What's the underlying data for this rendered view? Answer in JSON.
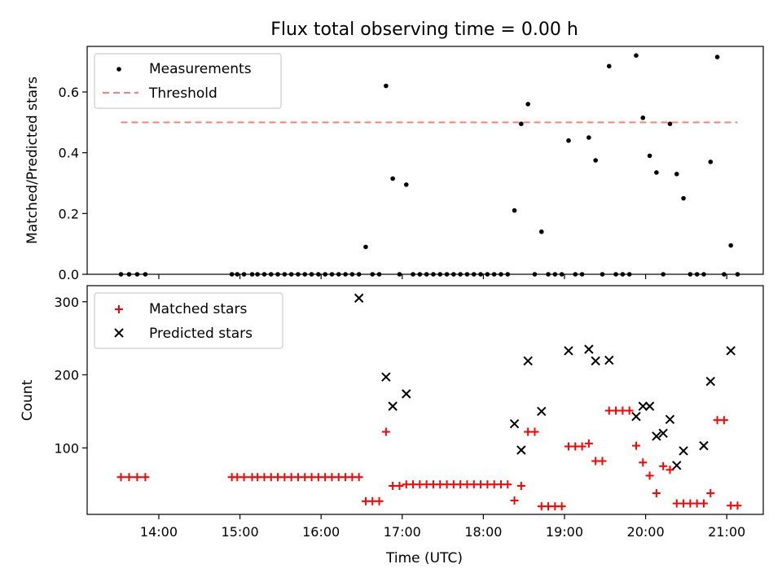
{
  "chart_data": [
    {
      "type": "scatter",
      "title": "Flux total observing time = 0.00 h",
      "xlabel": "",
      "ylabel": "Matched/Predicted stars",
      "ylim": [
        0,
        0.75
      ],
      "yticks": [
        "0.0",
        "0.2",
        "0.4",
        "0.6"
      ],
      "ytick_values": [
        0,
        0.2,
        0.4,
        0.6
      ],
      "legend": {
        "placement": "top-left",
        "entries": [
          "Measurements",
          "Threshold"
        ]
      },
      "colors": {
        "measurements": "#000000",
        "threshold": "#ff7f7f"
      },
      "threshold": {
        "name": "Threshold",
        "value": 0.5,
        "x_start": "13:32",
        "x_end": "21:08"
      },
      "series": [
        {
          "name": "Measurements",
          "x": [
            "13:32",
            "13:38",
            "13:44",
            "13:50",
            "14:54",
            "14:58",
            "15:03",
            "15:09",
            "15:13",
            "15:18",
            "15:23",
            "15:28",
            "15:33",
            "15:38",
            "15:43",
            "15:48",
            "15:53",
            "15:58",
            "16:03",
            "16:08",
            "16:13",
            "16:18",
            "16:23",
            "16:28",
            "16:33",
            "16:38",
            "16:43",
            "16:48",
            "16:53",
            "16:58",
            "17:03",
            "17:08",
            "17:13",
            "17:18",
            "17:23",
            "17:28",
            "17:33",
            "17:38",
            "17:43",
            "17:48",
            "17:53",
            "17:58",
            "18:03",
            "18:08",
            "18:13",
            "18:18",
            "18:23",
            "18:28",
            "18:33",
            "18:38",
            "18:43",
            "18:48",
            "18:53",
            "18:58",
            "19:03",
            "19:08",
            "19:13",
            "19:18",
            "19:23",
            "19:28",
            "19:33",
            "19:38",
            "19:43",
            "19:48",
            "19:53",
            "19:58",
            "20:03",
            "20:08",
            "20:13",
            "20:18",
            "20:23",
            "20:28",
            "20:33",
            "20:38",
            "20:43",
            "20:48",
            "20:53",
            "20:58",
            "21:03",
            "21:08"
          ],
          "y": [
            0,
            0,
            0,
            0,
            0,
            0,
            0,
            0,
            0,
            0,
            0,
            0,
            0,
            0,
            0,
            0,
            0,
            0,
            0,
            0,
            0,
            0,
            0,
            0,
            0.09,
            0,
            0,
            0.62,
            0.315,
            0,
            0.295,
            0,
            0,
            0,
            0,
            0,
            0,
            0,
            0,
            0,
            0,
            0,
            0,
            0,
            0,
            0,
            0.21,
            0.495,
            0.56,
            0,
            0.14,
            0,
            0,
            0,
            0.44,
            0,
            0,
            0.45,
            0.375,
            0,
            0.685,
            0,
            0,
            0,
            0.72,
            0.515,
            0.39,
            0.335,
            0,
            0.495,
            0.33,
            0.25,
            0,
            0,
            0,
            0.37,
            0.715,
            0,
            0.095,
            0
          ]
        }
      ]
    },
    {
      "type": "scatter",
      "title": "",
      "xlabel": "Time (UTC)",
      "ylabel": "Count",
      "xlim": [
        "13:07",
        "21:27"
      ],
      "ylim": [
        9,
        322
      ],
      "yticks": [
        "100",
        "200",
        "300"
      ],
      "ytick_values": [
        100,
        200,
        300
      ],
      "xticks": [
        "14:00",
        "15:00",
        "16:00",
        "17:00",
        "18:00",
        "19:00",
        "20:00",
        "21:00"
      ],
      "legend": {
        "placement": "top-left",
        "entries": [
          "Matched stars",
          "Predicted stars"
        ]
      },
      "colors": {
        "matched": "#ff0000",
        "predicted": "#000000"
      },
      "series": [
        {
          "name": "Matched stars",
          "x": [
            "13:32",
            "13:38",
            "13:44",
            "13:50",
            "14:54",
            "14:58",
            "15:03",
            "15:09",
            "15:13",
            "15:18",
            "15:23",
            "15:28",
            "15:33",
            "15:38",
            "15:43",
            "15:48",
            "15:53",
            "15:58",
            "16:03",
            "16:08",
            "16:13",
            "16:18",
            "16:23",
            "16:28",
            "16:33",
            "16:38",
            "16:43",
            "16:48",
            "16:53",
            "16:58",
            "17:03",
            "17:08",
            "17:13",
            "17:18",
            "17:23",
            "17:28",
            "17:33",
            "17:38",
            "17:43",
            "17:48",
            "17:53",
            "17:58",
            "18:03",
            "18:08",
            "18:13",
            "18:18",
            "18:23",
            "18:28",
            "18:33",
            "18:38",
            "18:43",
            "18:48",
            "18:53",
            "18:58",
            "19:03",
            "19:08",
            "19:13",
            "19:18",
            "19:23",
            "19:28",
            "19:33",
            "19:38",
            "19:43",
            "19:48",
            "19:53",
            "19:58",
            "20:03",
            "20:08",
            "20:13",
            "20:18",
            "20:23",
            "20:28",
            "20:33",
            "20:38",
            "20:43",
            "20:48",
            "20:53",
            "20:58",
            "21:03",
            "21:08"
          ],
          "y": [
            60,
            60,
            60,
            60,
            60,
            60,
            60,
            60,
            60,
            60,
            60,
            60,
            60,
            60,
            60,
            60,
            60,
            60,
            60,
            60,
            60,
            60,
            60,
            60,
            27,
            27,
            27,
            122,
            48,
            48,
            50,
            50,
            50,
            50,
            50,
            50,
            50,
            50,
            50,
            50,
            50,
            50,
            50,
            50,
            50,
            50,
            28,
            48,
            122,
            122,
            20,
            20,
            20,
            20,
            102,
            102,
            102,
            106,
            82,
            82,
            151,
            151,
            151,
            151,
            103,
            80,
            62,
            38,
            75,
            70,
            24,
            24,
            24,
            24,
            24,
            38,
            138,
            138,
            21,
            21
          ]
        },
        {
          "name": "Predicted stars",
          "x": [
            "16:28",
            "16:48",
            "16:53",
            "17:03",
            "18:23",
            "18:28",
            "18:33",
            "18:43",
            "19:03",
            "19:18",
            "19:23",
            "19:33",
            "19:53",
            "19:58",
            "20:03",
            "20:08",
            "20:13",
            "20:18",
            "20:23",
            "20:28",
            "20:43",
            "20:48",
            "21:03"
          ],
          "y": [
            305,
            197,
            157,
            174,
            133,
            97,
            219,
            150,
            233,
            235,
            219,
            220,
            143,
            157,
            157,
            116,
            120,
            139,
            76,
            96,
            103,
            191,
            233
          ]
        }
      ]
    }
  ]
}
